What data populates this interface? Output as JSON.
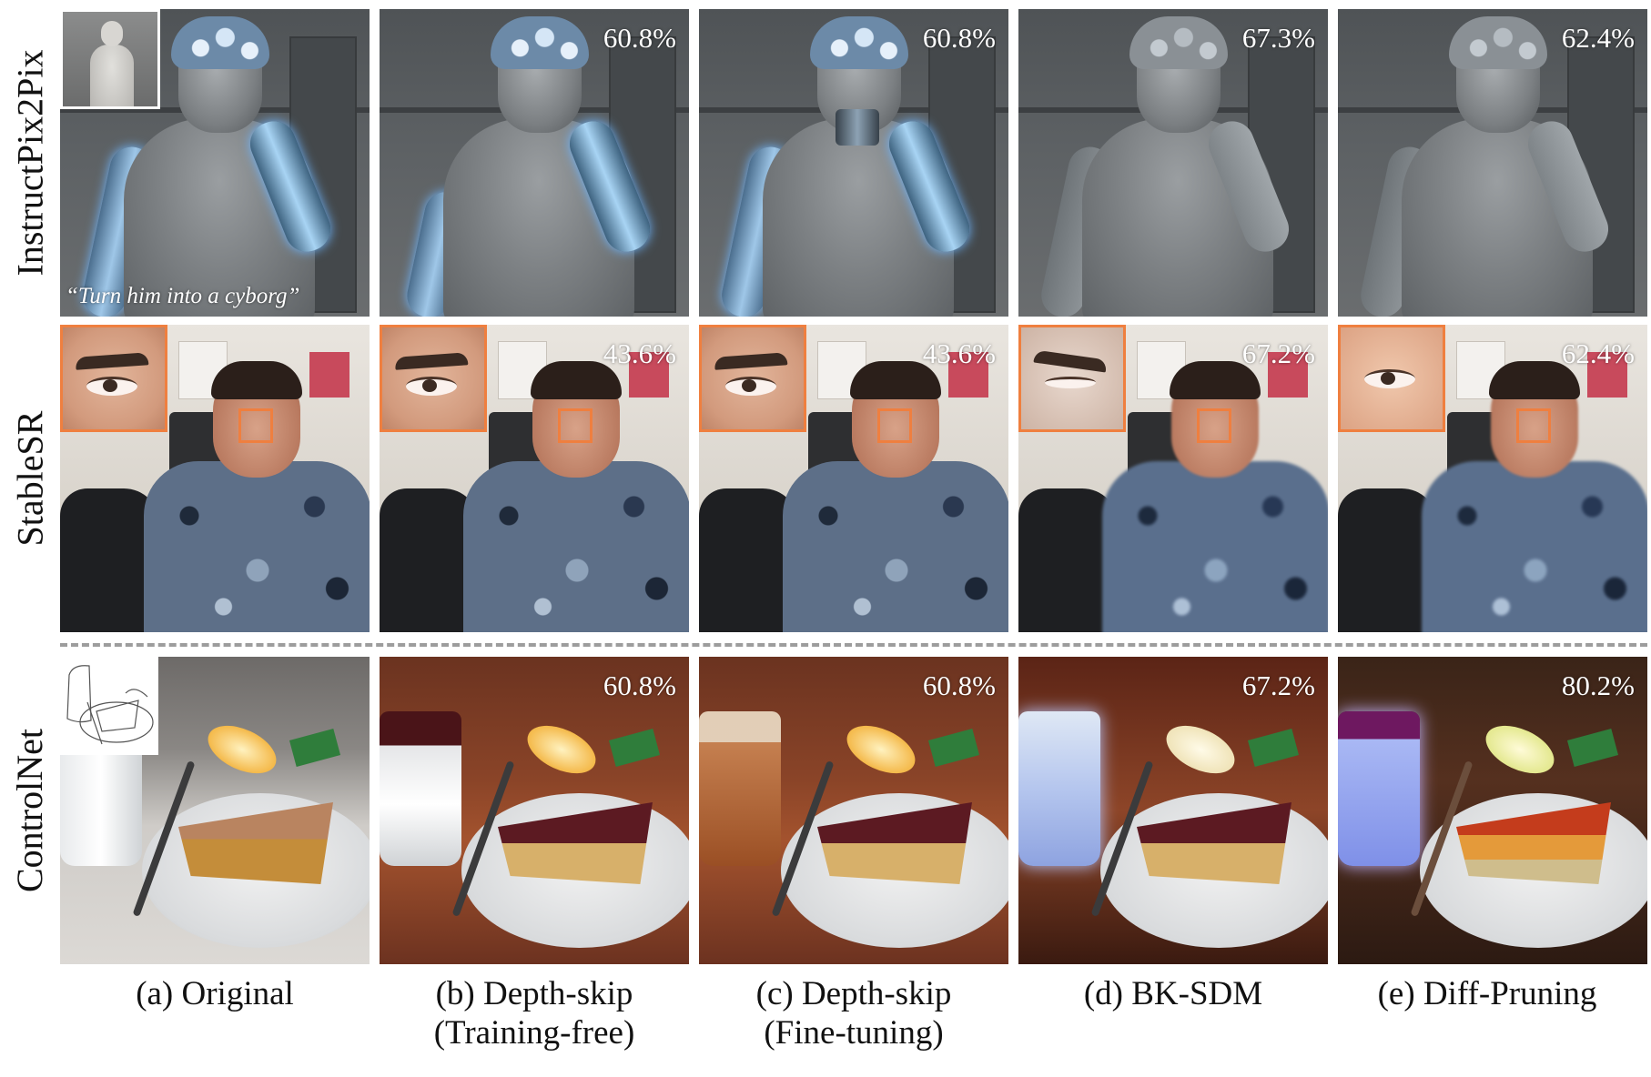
{
  "rows": [
    {
      "label": "InstructPix2Pix",
      "quote": "“Turn him into a cyborg”",
      "percents": [
        "60.8%",
        "60.8%",
        "67.3%",
        "62.4%"
      ]
    },
    {
      "label": "StableSR",
      "percents": [
        "43.6%",
        "43.6%",
        "67.2%",
        "62.4%"
      ]
    },
    {
      "label": "ControlNet",
      "percents": [
        "60.8%",
        "60.8%",
        "67.2%",
        "80.2%"
      ]
    }
  ],
  "columns": [
    {
      "line1": "(a) Original",
      "line2": ""
    },
    {
      "line1": "(b) Depth-skip",
      "line2": "(Training-free)"
    },
    {
      "line1": "(c) Depth-skip",
      "line2": "(Fine-tuning)"
    },
    {
      "line1": "(d) BK-SDM",
      "line2": ""
    },
    {
      "line1": "(e) Diff-Pruning",
      "line2": ""
    }
  ],
  "colors": {
    "zoom_box": "#ef7f3f",
    "divider": "#9d9d9d"
  }
}
